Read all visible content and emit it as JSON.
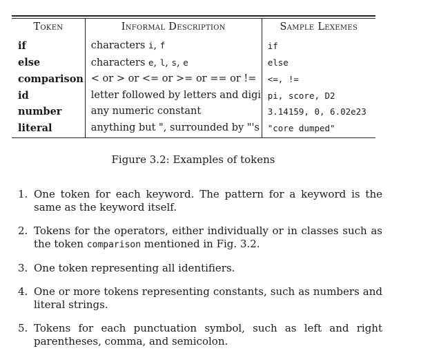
{
  "table": {
    "headers": [
      "Token",
      "Informal Description",
      "Sample Lexemes"
    ],
    "rows": [
      {
        "token": "if",
        "desc_parts": [
          [
            "characters ",
            "t"
          ],
          [
            "i",
            "m"
          ],
          [
            ", ",
            "t"
          ],
          [
            "f",
            "m"
          ]
        ],
        "lexemes": "if"
      },
      {
        "token": "else",
        "desc_parts": [
          [
            "characters ",
            "t"
          ],
          [
            "e",
            "m"
          ],
          [
            ", ",
            "t"
          ],
          [
            "l",
            "m"
          ],
          [
            ", ",
            "t"
          ],
          [
            "s",
            "m"
          ],
          [
            ", ",
            "t"
          ],
          [
            "e",
            "m"
          ]
        ],
        "lexemes": "else"
      },
      {
        "token": "comparison",
        "desc_parts": [
          [
            "< or > or <= or >= or == or != ",
            "t"
          ]
        ],
        "lexemes": "<=, !="
      },
      {
        "token": "id",
        "desc_parts": [
          [
            "letter followed by letters and digits",
            "t"
          ]
        ],
        "lexemes": "pi, score, D2"
      },
      {
        "token": "number",
        "desc_parts": [
          [
            "any numeric constant",
            "t"
          ]
        ],
        "lexemes": "3.14159, 0, 6.02e23"
      },
      {
        "token": "literal",
        "desc_parts": [
          [
            "anything but \", surrounded by \"'s",
            "t"
          ]
        ],
        "lexemes": "\"core dumped\""
      }
    ]
  },
  "caption": "Figure 3.2: Examples of tokens",
  "list": [
    {
      "num": "1.",
      "parts": [
        [
          "One token for each keyword. The pattern for a keyword is the same as the keyword itself.",
          "t"
        ]
      ]
    },
    {
      "num": "2.",
      "parts": [
        [
          "Tokens for the operators, either individually or in classes such as the token ",
          "t"
        ],
        [
          "comparison",
          "m"
        ],
        [
          " mentioned in Fig. 3.2.",
          "t"
        ]
      ]
    },
    {
      "num": "3.",
      "parts": [
        [
          "One token representing all identifiers.",
          "t"
        ]
      ]
    },
    {
      "num": "4.",
      "parts": [
        [
          "One or more tokens representing constants, such as numbers and literal strings.",
          "t"
        ]
      ]
    },
    {
      "num": "5.",
      "parts": [
        [
          "Tokens for each punctuation symbol, such as left and right parentheses, comma, and semicolon.",
          "t"
        ]
      ]
    }
  ]
}
